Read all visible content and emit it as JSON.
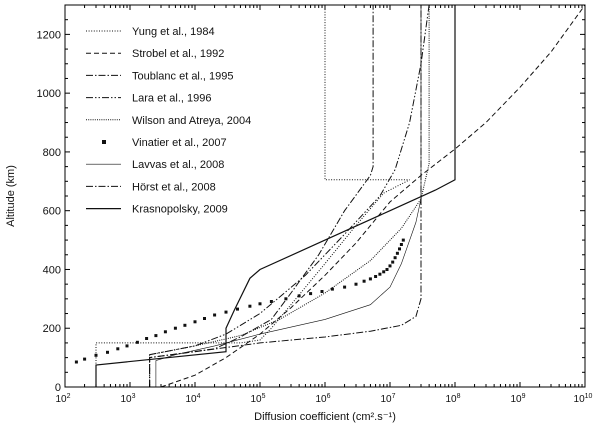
{
  "chart_data": {
    "type": "line",
    "title": "",
    "xlabel": "Diffusion coefficient (cm².s⁻¹)",
    "ylabel": "Altitude (km)",
    "xscale": "log",
    "xlim": [
      100,
      10000000000
    ],
    "ylim": [
      0,
      1300
    ],
    "grid": false,
    "legend_position": "top-left",
    "x_ticks": [
      {
        "value": 100,
        "base": "10",
        "exp": "2"
      },
      {
        "value": 1000,
        "base": "10",
        "exp": "3"
      },
      {
        "value": 10000,
        "base": "10",
        "exp": "4"
      },
      {
        "value": 100000,
        "base": "10",
        "exp": "5"
      },
      {
        "value": 1000000,
        "base": "10",
        "exp": "6"
      },
      {
        "value": 10000000,
        "base": "10",
        "exp": "7"
      },
      {
        "value": 100000000,
        "base": "10",
        "exp": "8"
      },
      {
        "value": 1000000000,
        "base": "10",
        "exp": "9"
      },
      {
        "value": 10000000000,
        "base": "10",
        "exp": "10"
      }
    ],
    "y_ticks": [
      0,
      200,
      400,
      600,
      800,
      1000,
      1200
    ],
    "series": [
      {
        "name": "Yung et al., 1984",
        "dash": "1,1.6",
        "width": 1,
        "points": [
          [
            300,
            0
          ],
          [
            300,
            150
          ],
          [
            1000,
            150
          ],
          [
            10000,
            150
          ],
          [
            50000,
            150
          ],
          [
            100000,
            160
          ],
          [
            150000,
            200
          ],
          [
            300000,
            280
          ],
          [
            1000000,
            420
          ],
          [
            3000000,
            550
          ],
          [
            8000000,
            660
          ],
          [
            20000000,
            705
          ],
          [
            1000000,
            705
          ],
          [
            1000000,
            1300
          ]
        ]
      },
      {
        "name": "Strobel et al., 1992",
        "dash": "5,3",
        "width": 1,
        "points": [
          [
            3000,
            0
          ],
          [
            10000,
            40
          ],
          [
            30000,
            100
          ],
          [
            100000,
            180
          ],
          [
            300000,
            270
          ],
          [
            1000000,
            380
          ],
          [
            3000000,
            490
          ],
          [
            10000000,
            630
          ],
          [
            30000000,
            720
          ],
          [
            100000000,
            810
          ],
          [
            300000000,
            900
          ],
          [
            1000000000,
            1020
          ],
          [
            3000000000,
            1140
          ],
          [
            10000000000,
            1300
          ]
        ]
      },
      {
        "name": "Toublanc et al., 1995",
        "dash": "7,2,1.5,2",
        "width": 1,
        "points": [
          [
            2000,
            0
          ],
          [
            2000,
            100
          ],
          [
            20000,
            130
          ],
          [
            50000,
            170
          ],
          [
            150000,
            230
          ],
          [
            300000,
            320
          ],
          [
            800000,
            450
          ],
          [
            2000000,
            600
          ],
          [
            5000000,
            720
          ],
          [
            5500000,
            750
          ],
          [
            5500000,
            1300
          ]
        ]
      },
      {
        "name": "Lara et al., 1996",
        "dash": "7,2,1.5,2,1.5,2",
        "width": 1,
        "points": [
          [
            2000,
            0
          ],
          [
            2000,
            110
          ],
          [
            10000,
            140
          ],
          [
            30000,
            180
          ],
          [
            100000,
            250
          ],
          [
            500000,
            380
          ],
          [
            2000000,
            520
          ],
          [
            7000000,
            650
          ],
          [
            12000000,
            740
          ],
          [
            20000000,
            900
          ],
          [
            30000000,
            1100
          ],
          [
            40000000,
            1300
          ]
        ]
      },
      {
        "name": "Wilson and Atreya, 2004",
        "dash": "1,1.2",
        "width": 1,
        "points": [
          [
            2000,
            0
          ],
          [
            2000,
            110
          ],
          [
            10000,
            140
          ],
          [
            50000,
            175
          ],
          [
            200000,
            230
          ],
          [
            1000000,
            320
          ],
          [
            5000000,
            430
          ],
          [
            15000000,
            540
          ],
          [
            30000000,
            640
          ],
          [
            40000000,
            760
          ],
          [
            40000000,
            1300
          ]
        ]
      },
      {
        "name": "Lavvas et al., 2008",
        "dash": "",
        "width": 0.6,
        "points": [
          [
            2500,
            0
          ],
          [
            2500,
            90
          ],
          [
            5000,
            110
          ],
          [
            20000,
            140
          ],
          [
            100000,
            180
          ],
          [
            1000000,
            230
          ],
          [
            5000000,
            280
          ],
          [
            10000000,
            340
          ],
          [
            15000000,
            420
          ],
          [
            25000000,
            560
          ],
          [
            30000000,
            640
          ],
          [
            30000000,
            1300
          ]
        ]
      },
      {
        "name": "Hörst et al., 2008",
        "dash": "7,2,1.5,2",
        "width": 1,
        "points": [
          [
            2000,
            0
          ],
          [
            2000,
            100
          ],
          [
            10000,
            120
          ],
          [
            100000,
            150
          ],
          [
            1000000,
            170
          ],
          [
            5000000,
            190
          ],
          [
            15000000,
            210
          ],
          [
            25000000,
            240
          ],
          [
            30000000,
            300
          ],
          [
            30000000,
            1300
          ]
        ]
      },
      {
        "name": "Krasnopolsky, 2009",
        "dash": "",
        "width": 1.2,
        "points": [
          [
            300,
            0
          ],
          [
            300,
            75
          ],
          [
            30000,
            120
          ],
          [
            30000,
            200
          ],
          [
            40000,
            260
          ],
          [
            70000,
            370
          ],
          [
            100000,
            400
          ],
          [
            1000000,
            500
          ],
          [
            10000000,
            600
          ],
          [
            50000000,
            670
          ],
          [
            100000000,
            705
          ],
          [
            100000000,
            1300
          ]
        ]
      }
    ],
    "scatter": {
      "name": "Vinatier et al., 2007",
      "points": [
        [
          150,
          85
        ],
        [
          200,
          95
        ],
        [
          300,
          108
        ],
        [
          450,
          118
        ],
        [
          650,
          130
        ],
        [
          900,
          140
        ],
        [
          1300,
          152
        ],
        [
          1800,
          165
        ],
        [
          2500,
          175
        ],
        [
          3500,
          188
        ],
        [
          5000,
          200
        ],
        [
          7000,
          210
        ],
        [
          10000,
          222
        ],
        [
          14000,
          233
        ],
        [
          20000,
          245
        ],
        [
          30000,
          255
        ],
        [
          45000,
          265
        ],
        [
          70000,
          275
        ],
        [
          100000,
          283
        ],
        [
          150000,
          291
        ],
        [
          250000,
          300
        ],
        [
          400000,
          310
        ],
        [
          600000,
          318
        ],
        [
          900000,
          325
        ],
        [
          1300000,
          333
        ],
        [
          2000000,
          340
        ],
        [
          3000000,
          350
        ],
        [
          4000000,
          360
        ],
        [
          5000000,
          368
        ],
        [
          6000000,
          376
        ],
        [
          7000000,
          384
        ],
        [
          8000000,
          392
        ],
        [
          9000000,
          400
        ],
        [
          10000000,
          412
        ],
        [
          11000000,
          425
        ],
        [
          12000000,
          440
        ],
        [
          13000000,
          455
        ],
        [
          14000000,
          470
        ],
        [
          15000000,
          485
        ],
        [
          16000000,
          500
        ]
      ]
    }
  }
}
